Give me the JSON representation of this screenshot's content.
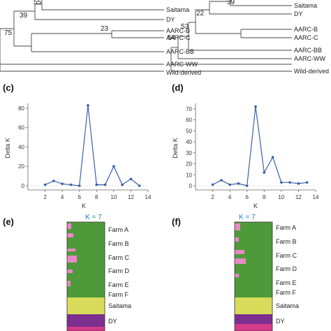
{
  "tree_left": {
    "leaves": [
      "Saitama",
      "DY",
      "AARC-B",
      "AARC-C",
      "AARC-BB",
      "AARC-WW",
      "Wild-derived"
    ],
    "bootstrap": [
      "55",
      "39",
      "23",
      "75"
    ]
  },
  "tree_right": {
    "leaves": [
      "Saitama",
      "DY",
      "AARC-B",
      "AARC-C",
      "AARC-BB",
      "AARC-WW",
      "Wild-derived"
    ],
    "bootstrap": [
      "39",
      "22",
      "53",
      "54"
    ]
  },
  "panels": {
    "c": "(c)",
    "d": "(d)",
    "e": "(e)",
    "f": "(f)"
  },
  "chart_data": [
    {
      "type": "line",
      "panel": "(c)",
      "xlabel": "K",
      "ylabel": "Delta K",
      "x": [
        2,
        3,
        4,
        5,
        6,
        7,
        8,
        9,
        10,
        11,
        12,
        13
      ],
      "values": [
        1,
        5,
        2,
        1,
        0,
        83,
        1,
        1,
        20,
        1,
        7,
        0
      ],
      "xlim": [
        0,
        14
      ],
      "ylim": [
        0,
        85
      ],
      "xticks": [
        "0",
        "2",
        "4",
        "6",
        "8",
        "10",
        "12",
        "14"
      ],
      "yticks": [
        "0",
        "20",
        "40",
        "60",
        "80"
      ],
      "color": "#3a5fa8"
    },
    {
      "type": "line",
      "panel": "(d)",
      "xlabel": "K",
      "ylabel": "Delta K",
      "x": [
        2,
        3,
        4,
        5,
        6,
        7,
        8,
        9,
        10,
        11,
        12,
        13
      ],
      "values": [
        1,
        5,
        1,
        2,
        0,
        72,
        12,
        26,
        3,
        3,
        2,
        3
      ],
      "xlim": [
        0,
        14
      ],
      "ylim": [
        0,
        75
      ],
      "xticks": [
        "0",
        "2",
        "4",
        "6",
        "8",
        "10",
        "12",
        "14"
      ],
      "yticks": [
        "0",
        "10",
        "20",
        "30",
        "40",
        "50",
        "60",
        "70"
      ],
      "color": "#3a5fa8"
    }
  ],
  "structure_left": {
    "k_label": "K = 7",
    "groups": [
      "Farm A",
      "Farm B",
      "Farm C",
      "Farm D",
      "Farm E",
      "Farm F",
      "Saitama",
      "DY"
    ]
  },
  "structure_right": {
    "k_label": "K = 7",
    "groups": [
      "Farm A",
      "Farm B",
      "Farm C",
      "Farm D",
      "Farm E",
      "Farm F",
      "Saitama",
      "DY"
    ]
  },
  "colors": {
    "green": "#4e9a3a",
    "yellow": "#d8dc5a",
    "purple": "#7b2f8e",
    "magenta": "#d63a8a",
    "pink": "#e88ac4",
    "line": "#3a5fa8"
  }
}
